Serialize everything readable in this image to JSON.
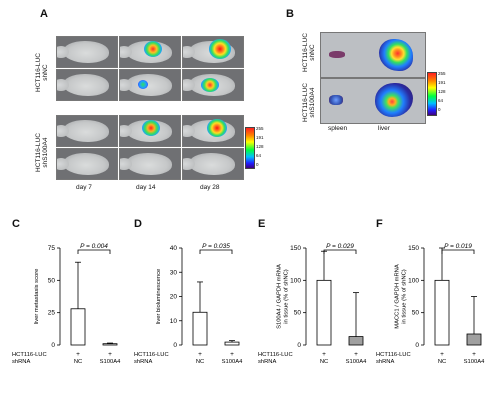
{
  "panels": {
    "a": "A",
    "b": "B",
    "c": "C",
    "d": "D",
    "e": "E",
    "f": "F"
  },
  "panel_a": {
    "row_labels": [
      "HCT116-LUC\nshNC",
      "HCT116-LUC\nshS100A4"
    ],
    "day_labels": [
      "day 7",
      "day 14",
      "day 28"
    ],
    "scale_ticks": [
      "255",
      "191",
      "128",
      "64",
      "0"
    ]
  },
  "panel_b": {
    "row_labels": [
      "HCT116-LUC\nshNC",
      "HCT116-LUC\nshS100A4"
    ],
    "organ_labels": [
      "spleen",
      "liver"
    ],
    "scale_ticks": [
      "255",
      "191",
      "128",
      "64",
      "0"
    ]
  },
  "common": {
    "row1_label": "HCT116-LUC",
    "row2_label": "shRNA",
    "minus": "-",
    "plus": "+",
    "nc": "NC",
    "s100a4": "S100A4"
  },
  "chart_data": [
    {
      "type": "bar",
      "id": "c",
      "categories": [
        "NC",
        "S100A4"
      ],
      "values": [
        28,
        1
      ],
      "errors": [
        36,
        0.5
      ],
      "ylabel": "liver metastasis score",
      "ylim": [
        0,
        75
      ],
      "yticks": [
        0,
        25,
        50,
        75
      ],
      "pvalue": "P = 0.004",
      "bar_colors": [
        "#ffffff",
        "#ffffff"
      ]
    },
    {
      "type": "bar",
      "id": "d",
      "categories": [
        "NC",
        "S100A4"
      ],
      "values": [
        13.5,
        1.2
      ],
      "errors": [
        12.5,
        0.6
      ],
      "ylabel": "liver bioluminescence",
      "ylim": [
        0,
        40
      ],
      "yticks": [
        0,
        10,
        20,
        30,
        40
      ],
      "pvalue": "P = 0.035",
      "bar_colors": [
        "#ffffff",
        "#ffffff"
      ]
    },
    {
      "type": "bar",
      "id": "e",
      "categories": [
        "NC",
        "S100A4"
      ],
      "values": [
        100,
        13
      ],
      "errors": [
        45,
        68
      ],
      "ylabel": "S100A4 / GAPDH mRNA\nin tissue (% of shNC)",
      "ylim": [
        0,
        150
      ],
      "yticks": [
        0,
        50,
        100,
        150
      ],
      "pvalue": "P = 0.029",
      "bar_colors": [
        "#ffffff",
        "#a0a0a0"
      ]
    },
    {
      "type": "bar",
      "id": "f",
      "categories": [
        "NC",
        "S100A4"
      ],
      "values": [
        100,
        17
      ],
      "errors": [
        50,
        58
      ],
      "ylabel": "MACC1 / GAPDH mRNA\nin tissue (% of shNC)",
      "ylim": [
        0,
        150
      ],
      "yticks": [
        0,
        50,
        100,
        150
      ],
      "pvalue": "P = 0.019",
      "bar_colors": [
        "#ffffff",
        "#a0a0a0"
      ]
    }
  ]
}
